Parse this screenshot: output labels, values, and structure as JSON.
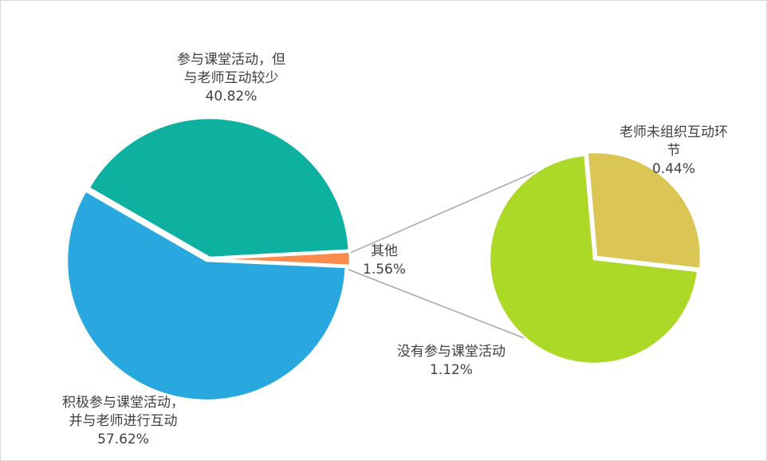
{
  "chart_data": {
    "type": "pie-of-pie",
    "main_pie": [
      {
        "label_lines": [
          "参与课堂活动，但",
          "与老师互动较少"
        ],
        "value_label": "40.82%",
        "value": 40.82,
        "color": "#0eb0a0"
      },
      {
        "label_lines": [
          "其他"
        ],
        "value_label": "1.56%",
        "value": 1.56,
        "color": "#fb8a4d"
      },
      {
        "label_lines": [
          "积极参与课堂活动，",
          "并与老师进行互动"
        ],
        "value_label": "57.62%",
        "value": 57.62,
        "color": "#29a8e0"
      }
    ],
    "secondary_pie": [
      {
        "label_lines": [
          "老师未组织互动环",
          "节"
        ],
        "value_label": "0.44%",
        "value": 0.44,
        "color": "#dbc655"
      },
      {
        "label_lines": [
          "没有参与课堂活动"
        ],
        "value_label": "1.12%",
        "value": 1.12,
        "color": "#acd828"
      }
    ],
    "connector_color": "#a6a6a6"
  }
}
